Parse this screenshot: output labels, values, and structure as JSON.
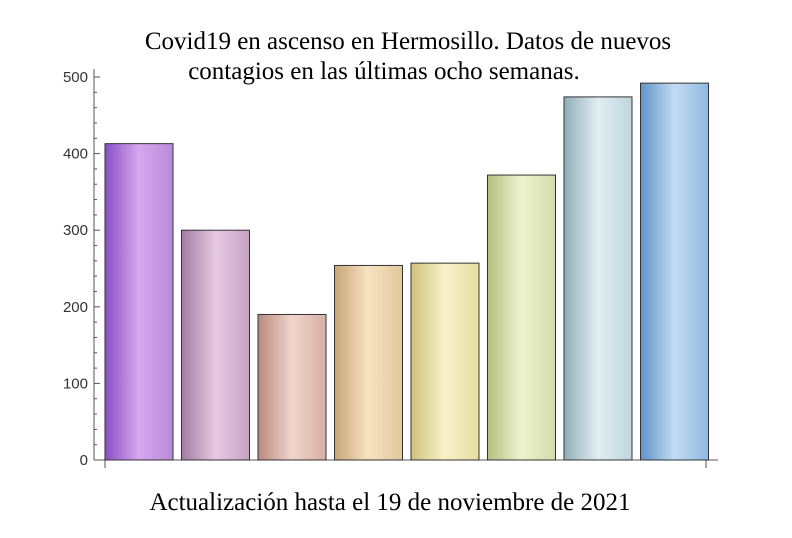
{
  "chart_data": {
    "type": "bar",
    "title_lines": [
      "Covid19 en ascenso en Hermosillo. Datos de nuevos",
      "contagios en las últimas ocho semanas."
    ],
    "caption": "Actualización hasta el 19 de noviembre de 2021",
    "values": [
      413,
      300,
      190,
      254,
      257,
      372,
      474,
      492
    ],
    "ylim": [
      0,
      500
    ],
    "yticks": [
      0,
      100,
      200,
      300,
      400,
      500
    ],
    "grid": false,
    "bar_colors": [
      [
        "#8a4fc4",
        "#d7a8f0",
        "#b88ad8"
      ],
      [
        "#a57aa2",
        "#e6c9e3",
        "#c6a2c2"
      ],
      [
        "#b88a7d",
        "#f0d5cc",
        "#d6b0a4"
      ],
      [
        "#c8a577",
        "#f7e3c2",
        "#e2c69b"
      ],
      [
        "#d0c27c",
        "#f8f2c8",
        "#e7dca0"
      ],
      [
        "#b5c07f",
        "#eef3cf",
        "#d5dcab"
      ],
      [
        "#92aeb8",
        "#e1eef2",
        "#bfd5dd"
      ],
      [
        "#5f93c8",
        "#c3dcf2",
        "#8fb9e2"
      ]
    ]
  }
}
